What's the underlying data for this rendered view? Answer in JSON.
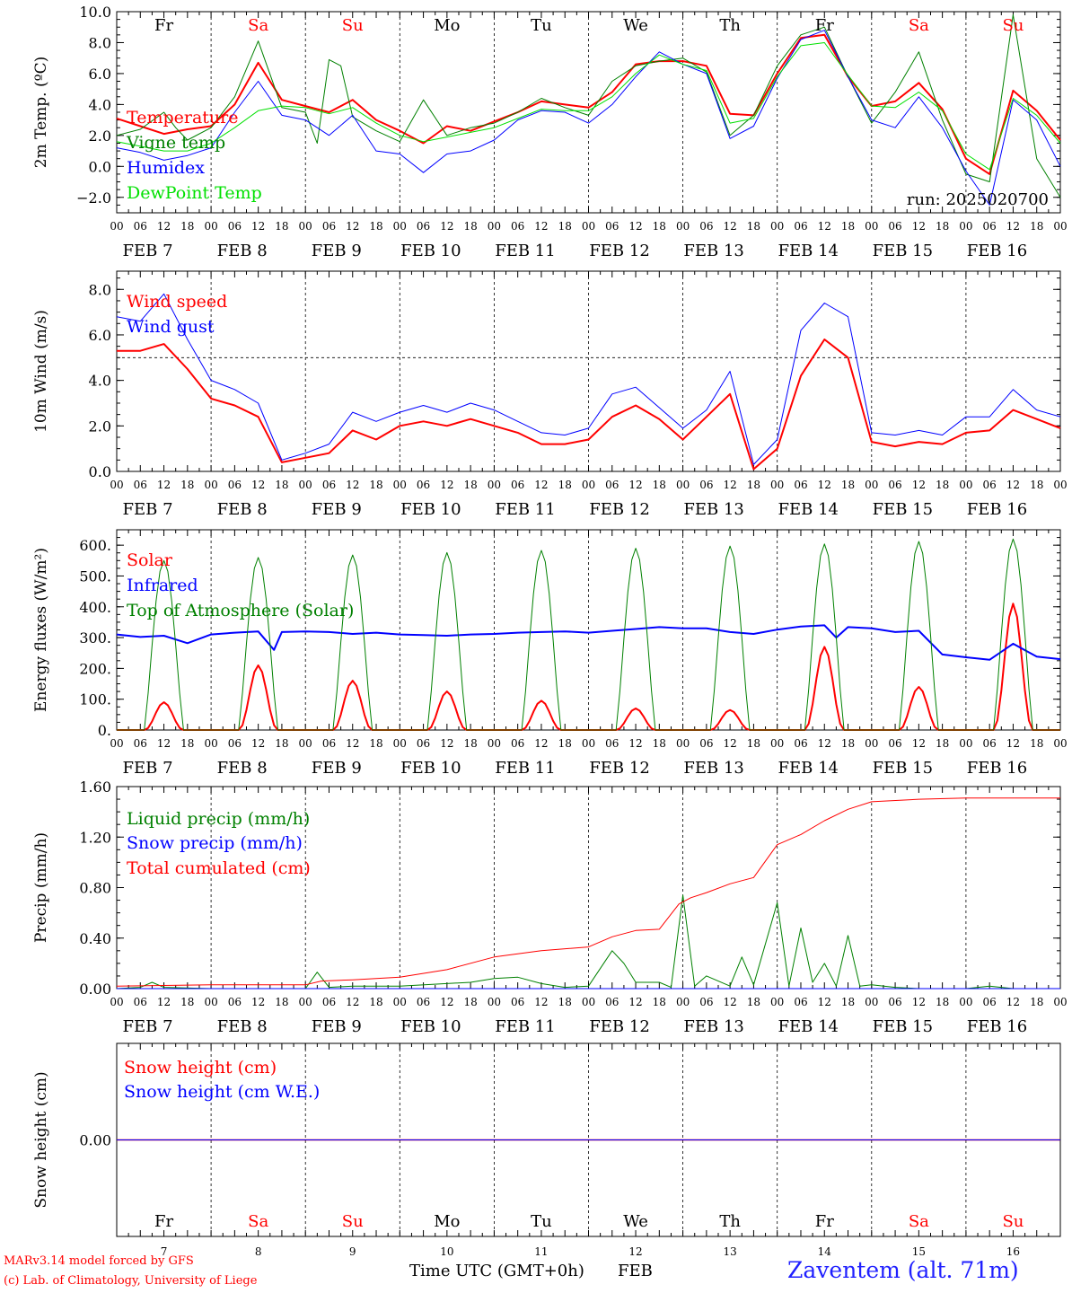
{
  "colors": {
    "red": "#ff0000",
    "green": "#008000",
    "blue": "#0000ff",
    "lightgreen": "#00e000",
    "black": "#000000",
    "weekend": "#ff0000"
  },
  "days": [
    {
      "abbr": "Fr",
      "label": "FEB  7",
      "num": "7",
      "weekend": false
    },
    {
      "abbr": "Sa",
      "label": "FEB  8",
      "num": "8",
      "weekend": true
    },
    {
      "abbr": "Su",
      "label": "FEB  9",
      "num": "9",
      "weekend": true
    },
    {
      "abbr": "Mo",
      "label": "FEB 10",
      "num": "10",
      "weekend": false
    },
    {
      "abbr": "Tu",
      "label": "FEB 11",
      "num": "11",
      "weekend": false
    },
    {
      "abbr": "We",
      "label": "FEB 12",
      "num": "12",
      "weekend": false
    },
    {
      "abbr": "Th",
      "label": "FEB 13",
      "num": "13",
      "weekend": false
    },
    {
      "abbr": "Fr",
      "label": "FEB 14",
      "num": "14",
      "weekend": false
    },
    {
      "abbr": "Sa",
      "label": "FEB 15",
      "num": "15",
      "weekend": true
    },
    {
      "abbr": "Su",
      "label": "FEB 16",
      "num": "16",
      "weekend": true
    }
  ],
  "hour_labels": [
    "00",
    "06",
    "12",
    "18"
  ],
  "run_label": "run: 2025020700",
  "footer": {
    "model": "MARv3.14 model forced by GFS",
    "credit": "(c) Lab. of Climatology, University of Liege",
    "axis_title": "Time UTC (GMT+0h)",
    "month": "FEB",
    "station": "Zaventem (alt. 71m)"
  },
  "chart_data": [
    {
      "type": "line",
      "ylabel": "2m Temp. (ºC)",
      "ylim": [
        -3,
        10
      ],
      "yticks": [
        -2,
        0,
        2,
        4,
        6,
        8,
        10
      ],
      "ytick_labels": [
        "−2.0",
        "0.0",
        "2.0",
        "4.0",
        "6.0",
        "8.0",
        "10.0"
      ],
      "x_unit": "hours since FEB 7 00 UTC",
      "xlim": [
        0,
        240
      ],
      "legend_placement": "left",
      "series": [
        {
          "name": "Temperature",
          "color": "red",
          "width": 2,
          "x": [
            0,
            6,
            12,
            18,
            24,
            30,
            36,
            42,
            48,
            54,
            60,
            66,
            72,
            78,
            84,
            90,
            96,
            102,
            108,
            114,
            120,
            126,
            132,
            138,
            144,
            150,
            156,
            162,
            168,
            174,
            180,
            186,
            192,
            198,
            204,
            210,
            216,
            222,
            228,
            234,
            240
          ],
          "y": [
            3.1,
            2.6,
            2.1,
            2.4,
            2.6,
            4.0,
            6.7,
            4.3,
            3.9,
            3.5,
            4.3,
            3.0,
            2.3,
            1.5,
            2.6,
            2.3,
            2.9,
            3.5,
            4.2,
            4.0,
            3.8,
            4.8,
            6.6,
            6.8,
            6.8,
            6.5,
            3.4,
            3.3,
            6.0,
            8.3,
            8.5,
            5.8,
            3.9,
            4.2,
            5.4,
            3.7,
            0.5,
            -0.5,
            4.9,
            3.6,
            1.7
          ]
        },
        {
          "name": "Vigne temp",
          "color": "green",
          "width": 1,
          "x": [
            0,
            6,
            12,
            15,
            18,
            24,
            30,
            36,
            42,
            48,
            51,
            54,
            57,
            60,
            66,
            72,
            78,
            84,
            90,
            96,
            102,
            108,
            114,
            120,
            126,
            132,
            138,
            144,
            150,
            156,
            162,
            168,
            174,
            180,
            186,
            192,
            198,
            204,
            210,
            216,
            222,
            228,
            234,
            240
          ],
          "y": [
            2.0,
            2.4,
            3.5,
            2.5,
            1.7,
            2.5,
            4.5,
            8.1,
            3.8,
            3.5,
            1.5,
            6.9,
            6.5,
            3.2,
            2.3,
            1.6,
            4.3,
            2.0,
            2.5,
            2.8,
            3.5,
            4.4,
            3.8,
            3.3,
            5.5,
            6.5,
            6.8,
            7.0,
            6.1,
            2.0,
            3.3,
            6.5,
            8.5,
            9.0,
            5.8,
            2.8,
            4.8,
            7.4,
            3.0,
            -0.5,
            -1.0,
            9.8,
            0.5,
            -2.0
          ]
        },
        {
          "name": "Humidex",
          "color": "blue",
          "width": 1,
          "x": [
            0,
            6,
            12,
            18,
            24,
            30,
            36,
            42,
            48,
            54,
            60,
            66,
            72,
            78,
            84,
            90,
            96,
            102,
            108,
            114,
            120,
            126,
            132,
            138,
            144,
            150,
            156,
            162,
            168,
            174,
            180,
            186,
            192,
            198,
            204,
            210,
            216,
            222,
            228,
            234,
            240
          ],
          "y": [
            1.2,
            0.9,
            0.4,
            0.7,
            1.2,
            3.5,
            5.5,
            3.3,
            3.0,
            2.0,
            3.3,
            1.0,
            0.8,
            -0.4,
            0.8,
            1.0,
            1.7,
            3.0,
            3.6,
            3.5,
            2.8,
            4.0,
            5.8,
            7.4,
            6.6,
            6.0,
            1.8,
            2.6,
            5.7,
            8.2,
            8.8,
            5.8,
            3.0,
            2.5,
            4.5,
            2.5,
            -0.3,
            -2.5,
            4.3,
            3.0,
            0.0
          ]
        },
        {
          "name": "DewPoint Temp",
          "color": "lightgreen",
          "width": 1,
          "x": [
            0,
            6,
            12,
            18,
            24,
            30,
            36,
            42,
            48,
            54,
            60,
            66,
            72,
            78,
            84,
            90,
            96,
            102,
            108,
            114,
            120,
            126,
            132,
            138,
            144,
            150,
            156,
            162,
            168,
            174,
            180,
            186,
            192,
            198,
            204,
            210,
            216,
            222,
            228,
            234,
            240
          ],
          "y": [
            1.6,
            1.3,
            1.0,
            1.0,
            1.5,
            2.5,
            3.6,
            3.9,
            3.8,
            3.4,
            3.8,
            2.8,
            2.0,
            1.6,
            1.9,
            2.2,
            2.5,
            3.1,
            3.7,
            3.6,
            3.6,
            4.5,
            6.0,
            7.2,
            6.6,
            6.2,
            2.8,
            3.1,
            5.8,
            7.8,
            8.0,
            5.9,
            3.9,
            3.8,
            4.8,
            3.6,
            0.8,
            -0.2,
            4.4,
            3.3,
            1.5
          ]
        }
      ]
    },
    {
      "type": "line",
      "ylabel": "10m Wind (m/s)",
      "ylim": [
        0,
        8.8
      ],
      "yticks": [
        0,
        2,
        4,
        6,
        8
      ],
      "ytick_labels": [
        "0.0",
        "2.0",
        "4.0",
        "6.0",
        "8.0"
      ],
      "reference_line": 5.0,
      "xlim": [
        0,
        240
      ],
      "series": [
        {
          "name": "Wind speed",
          "color": "red",
          "width": 2,
          "x": [
            0,
            6,
            12,
            18,
            24,
            30,
            36,
            42,
            48,
            54,
            60,
            66,
            72,
            78,
            84,
            90,
            96,
            102,
            108,
            114,
            120,
            126,
            132,
            138,
            144,
            150,
            156,
            162,
            168,
            174,
            180,
            186,
            192,
            198,
            204,
            210,
            216,
            222,
            228,
            234,
            240
          ],
          "y": [
            5.3,
            5.3,
            5.6,
            4.5,
            3.2,
            2.9,
            2.4,
            0.4,
            0.6,
            0.8,
            1.8,
            1.4,
            2.0,
            2.2,
            2.0,
            2.3,
            2.0,
            1.7,
            1.2,
            1.2,
            1.4,
            2.4,
            2.9,
            2.3,
            1.4,
            2.4,
            3.4,
            0.1,
            1.0,
            4.2,
            5.8,
            5.0,
            1.3,
            1.1,
            1.3,
            1.2,
            1.7,
            1.8,
            2.7,
            2.3,
            1.9
          ]
        },
        {
          "name": "Wind gust",
          "color": "blue",
          "width": 1,
          "x": [
            0,
            6,
            12,
            18,
            24,
            30,
            36,
            42,
            48,
            54,
            60,
            66,
            72,
            78,
            84,
            90,
            96,
            102,
            108,
            114,
            120,
            126,
            132,
            138,
            144,
            150,
            156,
            162,
            168,
            174,
            180,
            186,
            192,
            198,
            204,
            210,
            216,
            222,
            228,
            234,
            240
          ],
          "y": [
            6.8,
            6.6,
            7.8,
            5.8,
            4.0,
            3.6,
            3.0,
            0.5,
            0.8,
            1.2,
            2.6,
            2.2,
            2.6,
            2.9,
            2.6,
            3.0,
            2.7,
            2.2,
            1.7,
            1.6,
            1.9,
            3.4,
            3.7,
            2.8,
            1.9,
            2.7,
            4.4,
            0.3,
            1.4,
            6.2,
            7.4,
            6.8,
            1.7,
            1.6,
            1.8,
            1.6,
            2.4,
            2.4,
            3.6,
            2.7,
            2.4
          ]
        }
      ]
    },
    {
      "type": "line",
      "ylabel": "Energy fluxes (W/m²)",
      "ylim": [
        0,
        650
      ],
      "yticks": [
        0,
        100,
        200,
        300,
        400,
        500,
        600
      ],
      "ytick_labels": [
        "0.",
        "100.",
        "200.",
        "300.",
        "400.",
        "500.",
        "600."
      ],
      "xlim": [
        0,
        240
      ],
      "series": [
        {
          "name": "Solar",
          "color": "red",
          "width": 2,
          "diurnal": true,
          "day_peaks": [
            90,
            210,
            160,
            125,
            95,
            70,
            65,
            270,
            140,
            410
          ]
        },
        {
          "name": "Infrared",
          "color": "blue",
          "width": 2,
          "x": [
            0,
            6,
            12,
            18,
            24,
            30,
            36,
            40,
            42,
            48,
            54,
            60,
            66,
            72,
            78,
            84,
            90,
            96,
            102,
            108,
            114,
            120,
            126,
            132,
            138,
            144,
            150,
            156,
            162,
            168,
            174,
            180,
            183,
            186,
            192,
            198,
            204,
            210,
            216,
            222,
            228,
            234,
            240
          ],
          "y": [
            310,
            302,
            306,
            282,
            310,
            316,
            320,
            260,
            318,
            320,
            318,
            312,
            316,
            310,
            308,
            306,
            310,
            312,
            316,
            318,
            320,
            316,
            322,
            328,
            334,
            330,
            330,
            318,
            312,
            326,
            336,
            340,
            300,
            334,
            330,
            318,
            322,
            245,
            236,
            228,
            280,
            238,
            230
          ]
        },
        {
          "name": "Top of Atmosphere (Solar)",
          "color": "green",
          "width": 1,
          "diurnal": true,
          "day_peaks": [
            550,
            560,
            568,
            576,
            583,
            590,
            597,
            604,
            612,
            620
          ]
        }
      ]
    },
    {
      "type": "line",
      "ylabel": "Precip (mm/h)",
      "ylim": [
        0,
        1.6
      ],
      "yticks": [
        0,
        0.4,
        0.8,
        1.2,
        1.6
      ],
      "ytick_labels": [
        "0.00",
        "0.40",
        "0.80",
        "1.20",
        "1.60"
      ],
      "xlim": [
        0,
        240
      ],
      "series": [
        {
          "name": "Liquid precip (mm/h)",
          "color": "green",
          "width": 1,
          "x": [
            0,
            6,
            9,
            12,
            24,
            48,
            51,
            54,
            60,
            72,
            90,
            96,
            102,
            108,
            114,
            120,
            126,
            129,
            132,
            138,
            141,
            144,
            147,
            150,
            156,
            159,
            162,
            168,
            171,
            174,
            177,
            180,
            183,
            186,
            189,
            192,
            198,
            204,
            216,
            222,
            228,
            240
          ],
          "y": [
            0,
            0.01,
            0.05,
            0.01,
            0,
            0,
            0.13,
            0.01,
            0.02,
            0.02,
            0.05,
            0.08,
            0.09,
            0.04,
            0.01,
            0.02,
            0.3,
            0.2,
            0.05,
            0.05,
            0.01,
            0.74,
            0.02,
            0.1,
            0.02,
            0.25,
            0.03,
            0.68,
            0.02,
            0.48,
            0.05,
            0.2,
            0.02,
            0.42,
            0.02,
            0.03,
            0.01,
            0,
            0,
            0.02,
            0,
            0
          ]
        },
        {
          "name": "Snow precip (mm/h)",
          "color": "blue",
          "width": 1,
          "x": [
            0,
            240
          ],
          "y": [
            0,
            0
          ]
        },
        {
          "name": "Total cumulated (cm)",
          "color": "red",
          "width": 1,
          "x": [
            0,
            24,
            48,
            52,
            60,
            72,
            84,
            96,
            108,
            120,
            126,
            132,
            138,
            143,
            146,
            150,
            156,
            162,
            168,
            171,
            174,
            180,
            186,
            192,
            204,
            216,
            228,
            240
          ],
          "y": [
            0.02,
            0.03,
            0.03,
            0.06,
            0.07,
            0.09,
            0.15,
            0.25,
            0.3,
            0.33,
            0.41,
            0.46,
            0.47,
            0.67,
            0.72,
            0.76,
            0.83,
            0.88,
            1.14,
            1.18,
            1.22,
            1.33,
            1.42,
            1.48,
            1.5,
            1.51,
            1.51,
            1.51
          ]
        }
      ]
    },
    {
      "type": "line",
      "ylabel": "Snow height (cm)",
      "ylim": [
        -1,
        1
      ],
      "yticks": [
        0
      ],
      "ytick_labels": [
        "0.00"
      ],
      "xlim": [
        0,
        240
      ],
      "series": [
        {
          "name": "Snow height (cm)",
          "color": "red",
          "width": 1.5,
          "x": [
            0,
            240
          ],
          "y": [
            0,
            0
          ]
        },
        {
          "name": "Snow height (cm W.E.)",
          "color": "blue",
          "width": 1,
          "x": [
            0,
            240
          ],
          "y": [
            0,
            0
          ]
        }
      ]
    }
  ]
}
